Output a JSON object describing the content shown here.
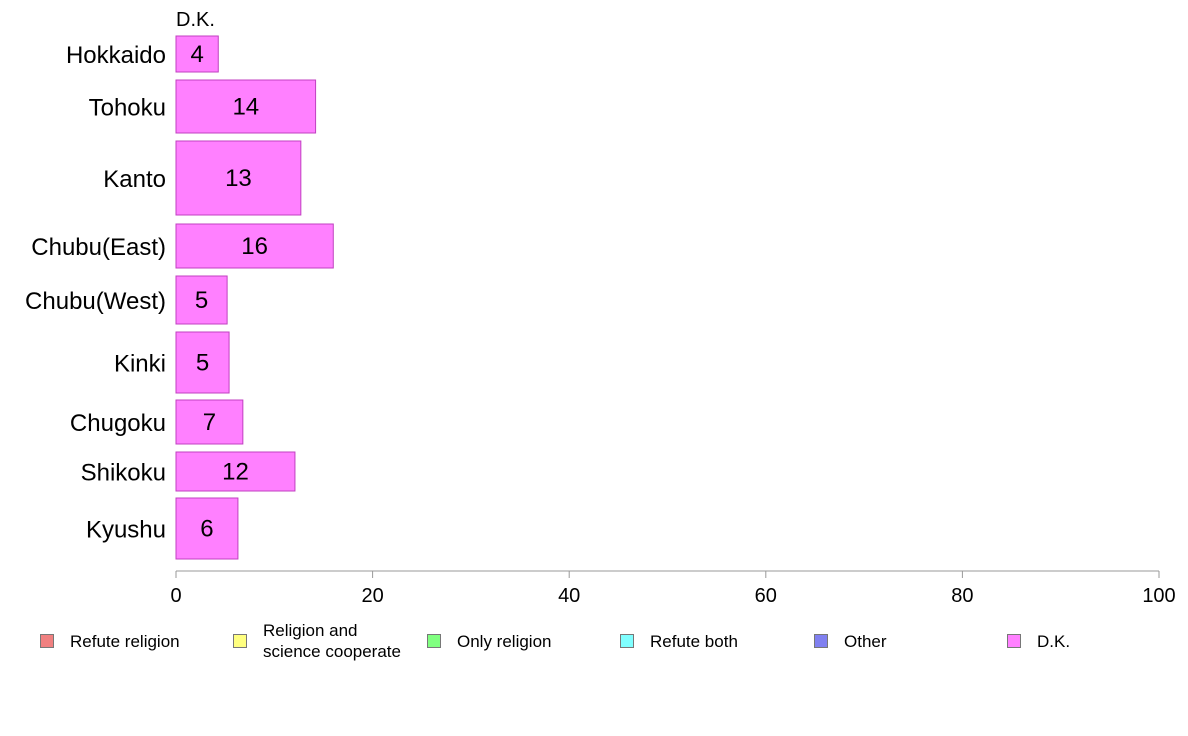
{
  "chart_data": {
    "type": "bar",
    "orientation": "horizontal",
    "title": "",
    "xlabel": "",
    "ylabel": "",
    "xlim": [
      0,
      100
    ],
    "x_ticks": [
      0,
      20,
      40,
      60,
      80,
      100
    ],
    "grid": false,
    "legend_placement": "bottom",
    "categories": [
      "Hokkaido",
      "Tohoku",
      "Kanto",
      "Chubu(East)",
      "Chubu(West)",
      "Kinki",
      "Chugoku",
      "Shikoku",
      "Kyushu"
    ],
    "series": [
      {
        "name": "Refute religion",
        "color": "#f08080",
        "values": [
          0,
          0,
          0,
          0,
          0,
          0,
          0,
          0,
          0
        ]
      },
      {
        "name": "Religion and\nscience cooperate",
        "color": "#ffff80",
        "values": [
          0,
          0,
          0,
          0,
          0,
          0,
          0,
          0,
          0
        ]
      },
      {
        "name": "Only religion",
        "color": "#80ff80",
        "values": [
          0,
          0,
          0,
          0,
          0,
          0,
          0,
          0,
          0
        ]
      },
      {
        "name": "Refute both",
        "color": "#80ffff",
        "values": [
          0,
          0,
          0,
          0,
          0,
          0,
          0,
          0,
          0
        ]
      },
      {
        "name": "Other",
        "color": "#8080f0",
        "values": [
          0,
          0,
          0,
          0,
          0,
          0,
          0,
          0,
          0
        ]
      },
      {
        "name": "D.K.",
        "color": "#ff80ff",
        "values": [
          4.3,
          14.2,
          12.7,
          16.0,
          5.2,
          5.4,
          6.8,
          12.1,
          6.3
        ]
      }
    ],
    "data_labels": [
      "4",
      "14",
      "13",
      "16",
      "5",
      "5",
      "7",
      "12",
      "6"
    ],
    "top_annotation": "D.K."
  }
}
